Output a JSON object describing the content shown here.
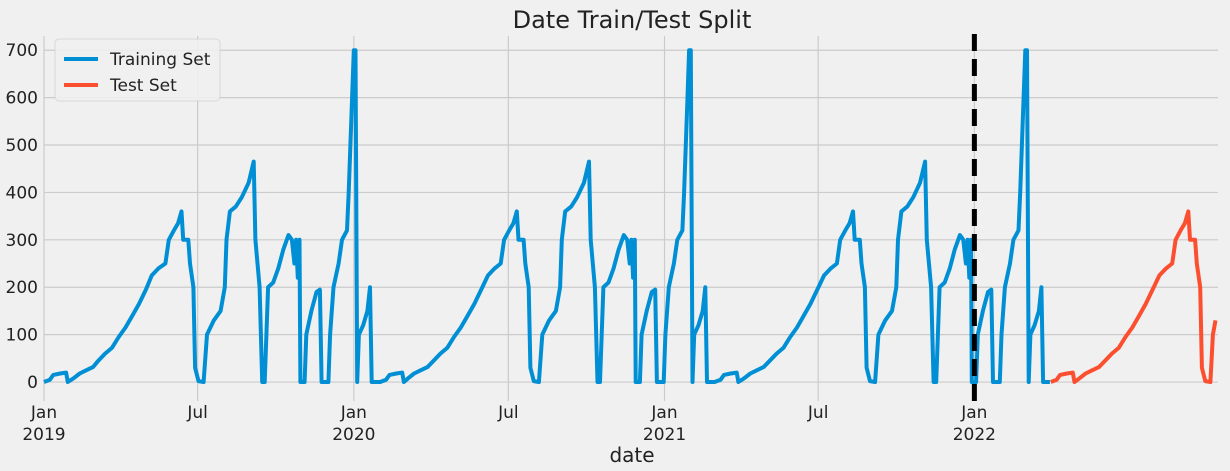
{
  "chart_data": {
    "type": "line",
    "title": "Date Train/Test Split",
    "xlabel": "date",
    "ylabel": "",
    "ylim": [
      -40,
      730
    ],
    "xlim": [
      "2019-01-01",
      "2022-10-15"
    ],
    "yticks": [
      0,
      100,
      200,
      300,
      400,
      500,
      600,
      700
    ],
    "xticks": [
      {
        "date": "2019-01-01",
        "label": "Jan",
        "year": "2019"
      },
      {
        "date": "2019-07-01",
        "label": "Jul",
        "year": ""
      },
      {
        "date": "2020-01-01",
        "label": "Jan",
        "year": "2020"
      },
      {
        "date": "2020-07-01",
        "label": "Jul",
        "year": ""
      },
      {
        "date": "2021-01-01",
        "label": "Jan",
        "year": "2021"
      },
      {
        "date": "2021-07-01",
        "label": "Jul",
        "year": ""
      },
      {
        "date": "2022-01-01",
        "label": "Jan",
        "year": "2022"
      }
    ],
    "grid": true,
    "legend": "top-left",
    "split_date": "2022-01-01",
    "series": [
      {
        "name": "Training Set",
        "color": "#008fd5",
        "points": [
          [
            "2019-01-01",
            0
          ],
          [
            "2019-01-08",
            5
          ],
          [
            "2019-01-12",
            15
          ],
          [
            "2019-01-20",
            18
          ],
          [
            "2019-01-27",
            20
          ],
          [
            "2019-01-29",
            0
          ],
          [
            "2019-02-05",
            8
          ],
          [
            "2019-02-12",
            18
          ],
          [
            "2019-02-20",
            25
          ],
          [
            "2019-02-28",
            32
          ],
          [
            "2019-03-06",
            45
          ],
          [
            "2019-03-14",
            60
          ],
          [
            "2019-03-22",
            72
          ],
          [
            "2019-03-30",
            95
          ],
          [
            "2019-04-07",
            115
          ],
          [
            "2019-04-15",
            140
          ],
          [
            "2019-04-23",
            165
          ],
          [
            "2019-05-01",
            195
          ],
          [
            "2019-05-08",
            225
          ],
          [
            "2019-05-16",
            240
          ],
          [
            "2019-05-24",
            250
          ],
          [
            "2019-05-28",
            300
          ],
          [
            "2019-06-03",
            320
          ],
          [
            "2019-06-08",
            335
          ],
          [
            "2019-06-12",
            360
          ],
          [
            "2019-06-14",
            300
          ],
          [
            "2019-06-20",
            300
          ],
          [
            "2019-06-22",
            250
          ],
          [
            "2019-06-26",
            200
          ],
          [
            "2019-06-28",
            30
          ],
          [
            "2019-07-02",
            2
          ],
          [
            "2019-07-08",
            0
          ],
          [
            "2019-07-12",
            100
          ],
          [
            "2019-07-20",
            130
          ],
          [
            "2019-07-28",
            150
          ],
          [
            "2019-08-02",
            200
          ],
          [
            "2019-08-04",
            300
          ],
          [
            "2019-08-08",
            360
          ],
          [
            "2019-08-15",
            370
          ],
          [
            "2019-08-22",
            390
          ],
          [
            "2019-08-30",
            420
          ],
          [
            "2019-09-05",
            465
          ],
          [
            "2019-09-07",
            300
          ],
          [
            "2019-09-12",
            200
          ],
          [
            "2019-09-15",
            0
          ],
          [
            "2019-09-18",
            0
          ],
          [
            "2019-09-20",
            100
          ],
          [
            "2019-09-22",
            200
          ],
          [
            "2019-09-28",
            210
          ],
          [
            "2019-10-04",
            240
          ],
          [
            "2019-10-10",
            280
          ],
          [
            "2019-10-16",
            310
          ],
          [
            "2019-10-20",
            300
          ],
          [
            "2019-10-23",
            250
          ],
          [
            "2019-10-25",
            300
          ],
          [
            "2019-10-27",
            220
          ],
          [
            "2019-10-29",
            300
          ],
          [
            "2019-10-30",
            0
          ],
          [
            "2019-11-04",
            0
          ],
          [
            "2019-11-06",
            100
          ],
          [
            "2019-11-12",
            150
          ],
          [
            "2019-11-18",
            190
          ],
          [
            "2019-11-22",
            195
          ],
          [
            "2019-11-24",
            0
          ],
          [
            "2019-12-02",
            0
          ],
          [
            "2019-12-04",
            100
          ],
          [
            "2019-12-08",
            200
          ],
          [
            "2019-12-14",
            250
          ],
          [
            "2019-12-18",
            300
          ],
          [
            "2019-12-24",
            320
          ],
          [
            "2019-12-26",
            400
          ],
          [
            "2019-12-28",
            500
          ],
          [
            "2019-12-30",
            600
          ],
          [
            "2020-01-01",
            700
          ],
          [
            "2020-01-03",
            700
          ],
          [
            "2020-01-05",
            0
          ],
          [
            "2020-01-07",
            100
          ],
          [
            "2020-01-12",
            120
          ],
          [
            "2020-01-17",
            150
          ],
          [
            "2020-01-20",
            200
          ],
          [
            "2020-01-22",
            0
          ],
          [
            "2020-02-01",
            0
          ],
          [
            "2020-02-08",
            5
          ],
          [
            "2020-02-12",
            15
          ],
          [
            "2020-02-20",
            18
          ],
          [
            "2020-02-27",
            20
          ],
          [
            "2020-02-29",
            0
          ],
          [
            "2020-03-05",
            8
          ],
          [
            "2020-03-12",
            18
          ],
          [
            "2020-03-20",
            25
          ],
          [
            "2020-03-28",
            32
          ],
          [
            "2020-04-04",
            45
          ],
          [
            "2020-04-12",
            60
          ],
          [
            "2020-04-20",
            72
          ],
          [
            "2020-04-28",
            95
          ],
          [
            "2020-05-06",
            115
          ],
          [
            "2020-05-14",
            140
          ],
          [
            "2020-05-22",
            165
          ],
          [
            "2020-05-30",
            195
          ],
          [
            "2020-06-07",
            225
          ],
          [
            "2020-06-15",
            240
          ],
          [
            "2020-06-22",
            250
          ],
          [
            "2020-06-26",
            300
          ],
          [
            "2020-07-02",
            320
          ],
          [
            "2020-07-07",
            335
          ],
          [
            "2020-07-11",
            360
          ],
          [
            "2020-07-13",
            300
          ],
          [
            "2020-07-19",
            300
          ],
          [
            "2020-07-21",
            250
          ],
          [
            "2020-07-25",
            200
          ],
          [
            "2020-07-27",
            30
          ],
          [
            "2020-07-31",
            2
          ],
          [
            "2020-08-06",
            0
          ],
          [
            "2020-08-10",
            100
          ],
          [
            "2020-08-18",
            130
          ],
          [
            "2020-08-26",
            150
          ],
          [
            "2020-08-31",
            200
          ],
          [
            "2020-09-02",
            300
          ],
          [
            "2020-09-06",
            360
          ],
          [
            "2020-09-13",
            370
          ],
          [
            "2020-09-20",
            390
          ],
          [
            "2020-09-28",
            420
          ],
          [
            "2020-10-04",
            465
          ],
          [
            "2020-10-06",
            300
          ],
          [
            "2020-10-11",
            200
          ],
          [
            "2020-10-14",
            0
          ],
          [
            "2020-10-17",
            0
          ],
          [
            "2020-10-19",
            100
          ],
          [
            "2020-10-21",
            200
          ],
          [
            "2020-10-27",
            210
          ],
          [
            "2020-11-02",
            240
          ],
          [
            "2020-11-08",
            280
          ],
          [
            "2020-11-14",
            310
          ],
          [
            "2020-11-18",
            300
          ],
          [
            "2020-11-21",
            250
          ],
          [
            "2020-11-23",
            300
          ],
          [
            "2020-11-25",
            220
          ],
          [
            "2020-11-27",
            300
          ],
          [
            "2020-11-28",
            0
          ],
          [
            "2020-12-03",
            0
          ],
          [
            "2020-12-05",
            100
          ],
          [
            "2020-12-11",
            150
          ],
          [
            "2020-12-17",
            190
          ],
          [
            "2020-12-21",
            195
          ],
          [
            "2020-12-23",
            0
          ],
          [
            "2020-12-31",
            0
          ],
          [
            "2021-01-02",
            100
          ],
          [
            "2021-01-06",
            200
          ],
          [
            "2021-01-12",
            250
          ],
          [
            "2021-01-16",
            300
          ],
          [
            "2021-01-22",
            320
          ],
          [
            "2021-01-24",
            400
          ],
          [
            "2021-01-26",
            500
          ],
          [
            "2021-01-28",
            600
          ],
          [
            "2021-01-30",
            700
          ],
          [
            "2021-02-01",
            700
          ],
          [
            "2021-02-03",
            0
          ],
          [
            "2021-02-05",
            100
          ],
          [
            "2021-02-10",
            120
          ],
          [
            "2021-02-15",
            150
          ],
          [
            "2021-02-18",
            200
          ],
          [
            "2021-02-20",
            0
          ],
          [
            "2021-03-01",
            0
          ],
          [
            "2021-03-08",
            5
          ],
          [
            "2021-03-12",
            15
          ],
          [
            "2021-03-20",
            18
          ],
          [
            "2021-03-27",
            20
          ],
          [
            "2021-03-29",
            0
          ],
          [
            "2021-04-05",
            8
          ],
          [
            "2021-04-12",
            18
          ],
          [
            "2021-04-20",
            25
          ],
          [
            "2021-04-28",
            32
          ],
          [
            "2021-05-05",
            45
          ],
          [
            "2021-05-13",
            60
          ],
          [
            "2021-05-21",
            72
          ],
          [
            "2021-05-29",
            95
          ],
          [
            "2021-06-06",
            115
          ],
          [
            "2021-06-14",
            140
          ],
          [
            "2021-06-22",
            165
          ],
          [
            "2021-06-30",
            195
          ],
          [
            "2021-07-08",
            225
          ],
          [
            "2021-07-16",
            240
          ],
          [
            "2021-07-23",
            250
          ],
          [
            "2021-07-27",
            300
          ],
          [
            "2021-08-02",
            320
          ],
          [
            "2021-08-07",
            335
          ],
          [
            "2021-08-11",
            360
          ],
          [
            "2021-08-13",
            300
          ],
          [
            "2021-08-19",
            300
          ],
          [
            "2021-08-21",
            250
          ],
          [
            "2021-08-25",
            200
          ],
          [
            "2021-08-27",
            30
          ],
          [
            "2021-08-31",
            2
          ],
          [
            "2021-09-06",
            0
          ],
          [
            "2021-09-10",
            100
          ],
          [
            "2021-09-18",
            130
          ],
          [
            "2021-09-26",
            150
          ],
          [
            "2021-10-01",
            200
          ],
          [
            "2021-10-03",
            300
          ],
          [
            "2021-10-07",
            360
          ],
          [
            "2021-10-14",
            370
          ],
          [
            "2021-10-21",
            390
          ],
          [
            "2021-10-29",
            420
          ],
          [
            "2021-11-04",
            465
          ],
          [
            "2021-11-06",
            300
          ],
          [
            "2021-11-11",
            200
          ],
          [
            "2021-11-14",
            0
          ],
          [
            "2021-11-17",
            0
          ],
          [
            "2021-11-19",
            100
          ],
          [
            "2021-11-21",
            200
          ],
          [
            "2021-11-27",
            210
          ],
          [
            "2021-12-03",
            240
          ],
          [
            "2021-12-09",
            280
          ],
          [
            "2021-12-15",
            310
          ],
          [
            "2021-12-19",
            300
          ],
          [
            "2021-12-22",
            250
          ],
          [
            "2021-12-24",
            300
          ],
          [
            "2021-12-26",
            220
          ],
          [
            "2021-12-28",
            300
          ],
          [
            "2021-12-29",
            0
          ],
          [
            "2022-01-03",
            0
          ],
          [
            "2022-01-05",
            100
          ],
          [
            "2022-01-11",
            150
          ],
          [
            "2022-01-17",
            190
          ],
          [
            "2022-01-21",
            195
          ],
          [
            "2022-01-23",
            0
          ],
          [
            "2022-01-31",
            0
          ],
          [
            "2022-02-02",
            100
          ],
          [
            "2022-02-06",
            200
          ],
          [
            "2022-02-12",
            250
          ],
          [
            "2022-02-16",
            300
          ],
          [
            "2022-02-22",
            320
          ],
          [
            "2022-02-24",
            400
          ],
          [
            "2022-02-26",
            500
          ],
          [
            "2022-02-28",
            600
          ],
          [
            "2022-03-02",
            700
          ],
          [
            "2022-03-04",
            700
          ],
          [
            "2022-03-06",
            0
          ],
          [
            "2022-03-08",
            100
          ],
          [
            "2022-03-13",
            120
          ],
          [
            "2022-03-18",
            150
          ],
          [
            "2022-03-21",
            200
          ],
          [
            "2022-03-23",
            0
          ],
          [
            "2022-03-31",
            0
          ]
        ]
      },
      {
        "name": "Test Set",
        "color": "#fc4f30",
        "points": [
          [
            "2022-04-01",
            0
          ],
          [
            "2022-04-08",
            5
          ],
          [
            "2022-04-12",
            15
          ],
          [
            "2022-04-20",
            18
          ],
          [
            "2022-04-27",
            20
          ],
          [
            "2022-04-29",
            0
          ],
          [
            "2022-05-05",
            8
          ],
          [
            "2022-05-12",
            18
          ],
          [
            "2022-05-20",
            25
          ],
          [
            "2022-05-28",
            32
          ],
          [
            "2022-06-04",
            45
          ],
          [
            "2022-06-12",
            60
          ],
          [
            "2022-06-20",
            72
          ],
          [
            "2022-06-28",
            95
          ],
          [
            "2022-07-06",
            115
          ],
          [
            "2022-07-14",
            140
          ],
          [
            "2022-07-22",
            165
          ],
          [
            "2022-07-30",
            195
          ],
          [
            "2022-08-07",
            225
          ],
          [
            "2022-08-15",
            240
          ],
          [
            "2022-08-22",
            250
          ],
          [
            "2022-08-26",
            300
          ],
          [
            "2022-09-01",
            320
          ],
          [
            "2022-09-06",
            335
          ],
          [
            "2022-09-10",
            360
          ],
          [
            "2022-09-12",
            300
          ],
          [
            "2022-09-18",
            300
          ],
          [
            "2022-09-20",
            250
          ],
          [
            "2022-09-24",
            200
          ],
          [
            "2022-09-26",
            30
          ],
          [
            "2022-09-30",
            2
          ],
          [
            "2022-10-06",
            0
          ],
          [
            "2022-10-09",
            100
          ],
          [
            "2022-10-12",
            130
          ]
        ]
      }
    ]
  }
}
